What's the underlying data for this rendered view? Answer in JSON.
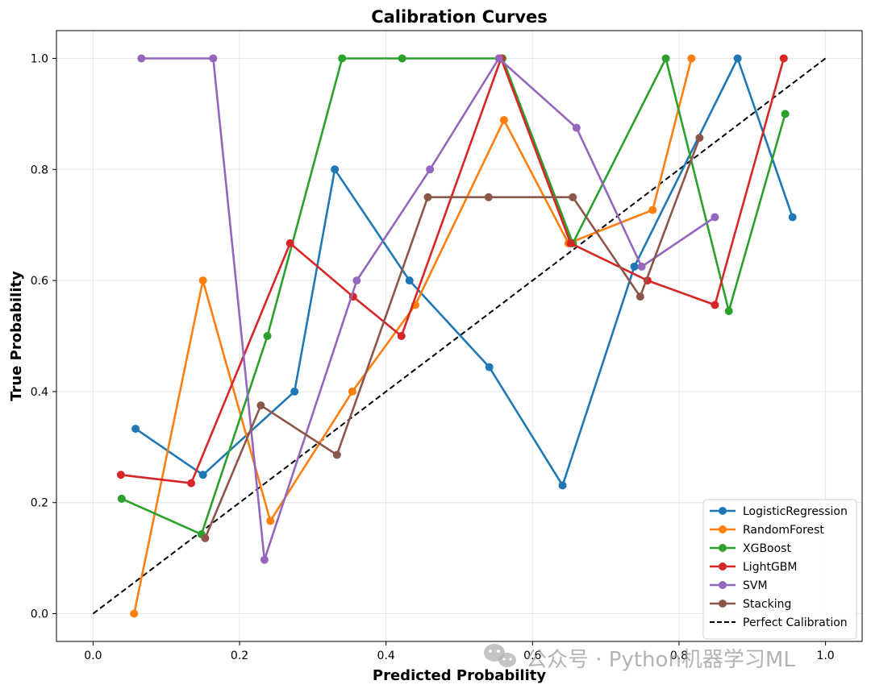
{
  "chart_data": {
    "type": "line",
    "title": "Calibration Curves",
    "xlabel": "Predicted Probability",
    "ylabel": "True Probability",
    "xlim": [
      -0.05,
      1.05
    ],
    "ylim": [
      -0.05,
      1.05
    ],
    "xticks": [
      0.0,
      0.2,
      0.4,
      0.6,
      0.8,
      1.0
    ],
    "yticks": [
      0.0,
      0.2,
      0.4,
      0.6,
      0.8,
      1.0
    ],
    "xtick_labels": [
      "0.0",
      "0.2",
      "0.4",
      "0.6",
      "0.8",
      "1.0"
    ],
    "ytick_labels": [
      "0.0",
      "0.2",
      "0.4",
      "0.6",
      "0.8",
      "1.0"
    ],
    "grid": true,
    "legend_position": "bottom-right",
    "series": [
      {
        "name": "LogisticRegression",
        "color": "#1f77b4",
        "x": [
          0.058,
          0.15,
          0.275,
          0.33,
          0.432,
          0.541,
          0.641,
          0.739,
          0.88,
          0.955
        ],
        "y": [
          0.333,
          0.25,
          0.4,
          0.8,
          0.6,
          0.444,
          0.231,
          0.625,
          1.0,
          0.714
        ]
      },
      {
        "name": "RandomForest",
        "color": "#ff7f0e",
        "x": [
          0.056,
          0.15,
          0.242,
          0.354,
          0.44,
          0.561,
          0.649,
          0.764,
          0.817
        ],
        "y": [
          0.0,
          0.6,
          0.167,
          0.4,
          0.556,
          0.889,
          0.667,
          0.727,
          1.0
        ]
      },
      {
        "name": "XGBoost",
        "color": "#2ca02c",
        "x": [
          0.039,
          0.148,
          0.238,
          0.34,
          0.422,
          0.559,
          0.655,
          0.782,
          0.868,
          0.945
        ],
        "y": [
          0.207,
          0.143,
          0.5,
          1.0,
          1.0,
          1.0,
          0.667,
          1.0,
          0.545,
          0.9
        ]
      },
      {
        "name": "LightGBM",
        "color": "#d62728",
        "x": [
          0.038,
          0.134,
          0.269,
          0.355,
          0.421,
          0.557,
          0.652,
          0.757,
          0.849,
          0.943
        ],
        "y": [
          0.25,
          0.235,
          0.667,
          0.571,
          0.5,
          1.0,
          0.667,
          0.6,
          0.556,
          1.0
        ]
      },
      {
        "name": "SVM",
        "color": "#9467bd",
        "x": [
          0.066,
          0.164,
          0.234,
          0.36,
          0.46,
          0.554,
          0.66,
          0.749,
          0.849
        ],
        "y": [
          1.0,
          1.0,
          0.097,
          0.6,
          0.8,
          1.0,
          0.875,
          0.625,
          0.714
        ]
      },
      {
        "name": "Stacking",
        "color": "#8c564b",
        "x": [
          0.153,
          0.229,
          0.333,
          0.457,
          0.54,
          0.655,
          0.747,
          0.828
        ],
        "y": [
          0.136,
          0.375,
          0.286,
          0.75,
          0.75,
          0.75,
          0.571,
          0.857
        ]
      }
    ],
    "reference_line": {
      "name": "Perfect Calibration",
      "color": "#000000",
      "x": [
        0.0,
        1.0
      ],
      "y": [
        0.0,
        1.0
      ]
    }
  },
  "watermark": {
    "text": "公众号 · Python机器学习ML",
    "icon": "wechat-icon"
  }
}
